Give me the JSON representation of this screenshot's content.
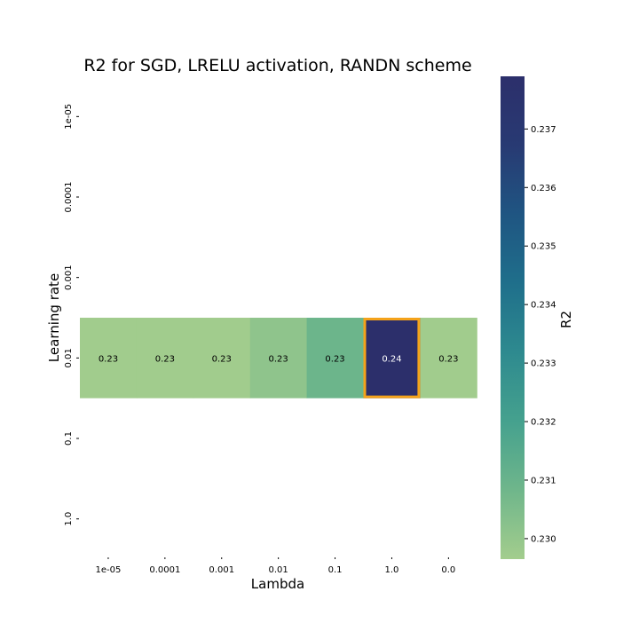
{
  "chart_data": {
    "type": "heatmap",
    "title": "R2 for SGD, LRELU activation, RANDN scheme",
    "xlabel": "Lambda",
    "ylabel": "Learning rate",
    "x_categories": [
      "1e-05",
      "0.0001",
      "0.001",
      "0.01",
      "0.1",
      "1.0",
      "0.0"
    ],
    "y_categories": [
      "1e-05",
      "0.0001",
      "0.001",
      "0.01",
      "0.1",
      "1.0"
    ],
    "rows": [
      {
        "y": "1e-05",
        "values": [
          null,
          null,
          null,
          null,
          null,
          null,
          null
        ],
        "labels": [
          "",
          "",
          "",
          "",
          "",
          "",
          ""
        ]
      },
      {
        "y": "0.0001",
        "values": [
          null,
          null,
          null,
          null,
          null,
          null,
          null
        ],
        "labels": [
          "",
          "",
          "",
          "",
          "",
          "",
          ""
        ]
      },
      {
        "y": "0.001",
        "values": [
          null,
          null,
          null,
          null,
          null,
          null,
          null
        ],
        "labels": [
          "",
          "",
          "",
          "",
          "",
          "",
          ""
        ]
      },
      {
        "y": "0.01",
        "values": [
          0.2297,
          0.2297,
          0.2297,
          0.2301,
          0.2309,
          0.2379,
          0.2297
        ],
        "labels": [
          "0.23",
          "0.23",
          "0.23",
          "0.23",
          "0.23",
          "0.24",
          "0.23"
        ]
      },
      {
        "y": "0.1",
        "values": [
          null,
          null,
          null,
          null,
          null,
          null,
          null
        ],
        "labels": [
          "",
          "",
          "",
          "",
          "",
          "",
          ""
        ]
      },
      {
        "y": "1.0",
        "values": [
          null,
          null,
          null,
          null,
          null,
          null,
          null
        ],
        "labels": [
          "",
          "",
          "",
          "",
          "",
          "",
          ""
        ]
      }
    ],
    "highlight": {
      "row": "0.01",
      "col": "1.0",
      "color": "#f5a31a"
    },
    "colorbar": {
      "label": "R2",
      "range": [
        0.22965,
        0.2379
      ],
      "ticks": [
        "0.230",
        "0.231",
        "0.232",
        "0.233",
        "0.234",
        "0.235",
        "0.236",
        "0.237"
      ],
      "colormap": [
        "#a3cd8d",
        "#6fb68b",
        "#45a18e",
        "#2e8a8f",
        "#1f6f8b",
        "#1f5582",
        "#283a73",
        "#2c2f6b"
      ]
    },
    "grid": false
  }
}
